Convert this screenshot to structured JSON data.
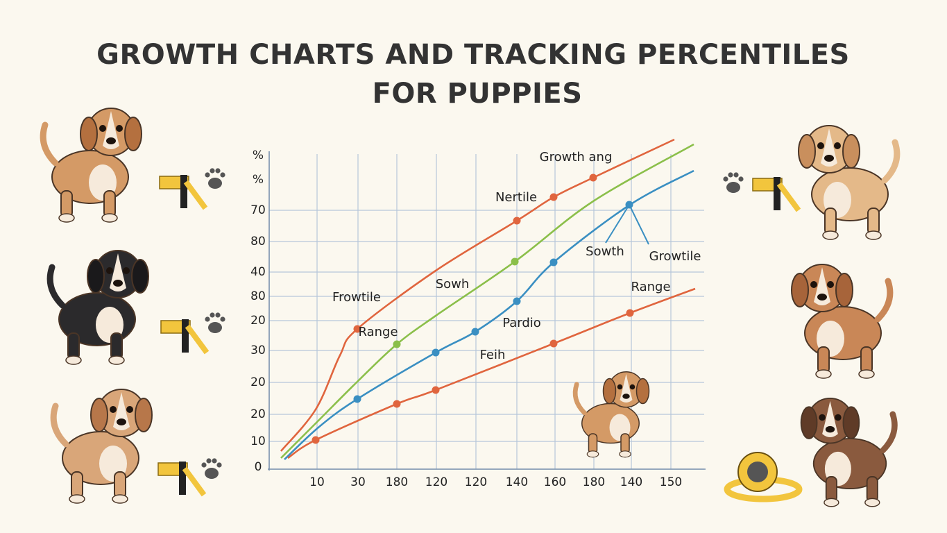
{
  "header": {
    "title": [
      "GROWTH CHARTS AND TRACKING PERCENTILES",
      "FOR PUPPIES"
    ]
  },
  "chart": {
    "y_axis_labels": [
      "%",
      "%",
      "70",
      "80",
      "40",
      "80",
      "20",
      "30",
      "20",
      "20",
      "10",
      "0"
    ],
    "x_axis_labels": [
      "10",
      "30",
      "180",
      "120",
      "120",
      "140",
      "160",
      "180",
      "140",
      "150"
    ],
    "annotations": [
      "Growth ang",
      "Nertile",
      "Sowth",
      "Growtile",
      "Range",
      "Frowtile",
      "Sowh",
      "Range",
      "Pardio",
      "Feih"
    ]
  }
}
